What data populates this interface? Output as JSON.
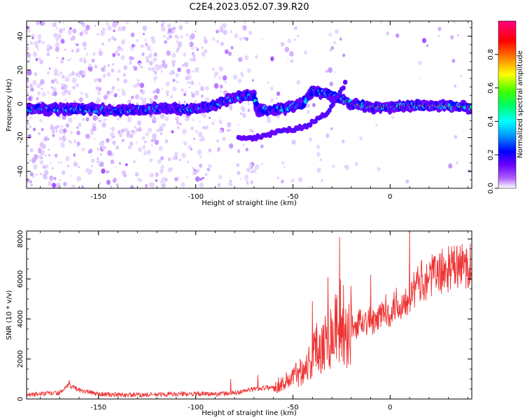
{
  "title": "C2E4.2023.052.07.39.R20",
  "chart_data": [
    {
      "type": "heatmap",
      "xlabel": "Height of straight line (km)",
      "ylabel": "Frequency (Hz)",
      "xlim": [
        -187,
        42
      ],
      "ylim": [
        -50,
        49
      ],
      "xticks": [
        -150,
        -100,
        -50,
        0
      ],
      "xtick_labels": [
        "-150",
        "-100",
        "-50",
        "0"
      ],
      "yticks": [
        -40,
        -20,
        0,
        20,
        40
      ],
      "ytick_labels": [
        "-40",
        "-20",
        "0",
        "20",
        "40"
      ],
      "grid": false,
      "ridge": [
        {
          "x": -185,
          "y": -3
        },
        {
          "x": -170,
          "y": -3
        },
        {
          "x": -160,
          "y": -3
        },
        {
          "x": -140,
          "y": -4
        },
        {
          "x": -120,
          "y": -3
        },
        {
          "x": -100,
          "y": -3
        },
        {
          "x": -90,
          "y": -1
        },
        {
          "x": -80,
          "y": 4
        },
        {
          "x": -70,
          "y": 5
        },
        {
          "x": -68,
          "y": -4
        },
        {
          "x": -55,
          "y": -3
        },
        {
          "x": -45,
          "y": 0
        },
        {
          "x": -40,
          "y": 8
        },
        {
          "x": -30,
          "y": 5
        },
        {
          "x": -25,
          "y": 3
        },
        {
          "x": -20,
          "y": 0
        },
        {
          "x": -10,
          "y": -2
        },
        {
          "x": 0,
          "y": -2
        },
        {
          "x": 10,
          "y": -1
        },
        {
          "x": 25,
          "y": -1
        },
        {
          "x": 40,
          "y": -2
        }
      ],
      "branch": [
        {
          "x": -78,
          "y": -20
        },
        {
          "x": -70,
          "y": -20
        },
        {
          "x": -55,
          "y": -16
        },
        {
          "x": -45,
          "y": -14
        },
        {
          "x": -38,
          "y": -10
        },
        {
          "x": -32,
          "y": -5
        },
        {
          "x": -27,
          "y": 5
        },
        {
          "x": -23,
          "y": 12
        }
      ],
      "colorbar": {
        "label": "Normalized spectral amplitude",
        "min": 0.0,
        "max": 1.0,
        "ticks": [
          0.0,
          0.2,
          0.4,
          0.6,
          0.8
        ],
        "tick_labels": [
          "0.0",
          "0.2",
          "0.4",
          "0.6",
          "0.8"
        ],
        "colors": [
          "#ffffff",
          "#b060ff",
          "#6a00ff",
          "#0000ff",
          "#00a0ff",
          "#00ffff",
          "#00ff60",
          "#40ff00",
          "#ffff00",
          "#ff8000",
          "#ff0000",
          "#ff0080"
        ]
      }
    },
    {
      "type": "line",
      "xlabel": "Height of straight line (km)",
      "ylabel": "SNR (10 * v/v)",
      "xlim": [
        -187,
        42
      ],
      "ylim": [
        0,
        8400
      ],
      "xticks": [
        -150,
        -100,
        -50,
        0
      ],
      "xtick_labels": [
        "-150",
        "-100",
        "-50",
        "0"
      ],
      "yticks": [
        0,
        2000,
        4000,
        6000,
        8000
      ],
      "ytick_labels": [
        "0",
        "2000",
        "4000",
        "6000",
        "8000"
      ],
      "grid": false,
      "series": [
        {
          "color": "#ee3333",
          "x": [
            -187,
            -180,
            -170,
            -165,
            -160,
            -150,
            -140,
            -130,
            -120,
            -110,
            -100,
            -90,
            -80,
            -75,
            -70,
            -65,
            -60,
            -55,
            -50,
            -45,
            -40,
            -38,
            -35,
            -32,
            -30,
            -28,
            -26,
            -25,
            -24,
            -22,
            -20,
            -18,
            -15,
            -12,
            -10,
            -8,
            -5,
            -3,
            0,
            3,
            5,
            8,
            10,
            12,
            15,
            18,
            20,
            25,
            30,
            35,
            40,
            42
          ],
          "y": [
            200,
            250,
            300,
            700,
            450,
            250,
            200,
            200,
            220,
            250,
            250,
            250,
            300,
            400,
            500,
            550,
            600,
            800,
            1100,
            1500,
            2000,
            2600,
            2800,
            3000,
            3300,
            3600,
            3900,
            4200,
            2500,
            3200,
            3800,
            3400,
            4100,
            3800,
            4000,
            3700,
            4200,
            4500,
            4300,
            4800,
            4600,
            5000,
            5200,
            5400,
            5800,
            6000,
            6100,
            6300,
            6500,
            6600,
            6700,
            6700
          ]
        }
      ],
      "spikes": [
        {
          "x": -165,
          "y": 950
        },
        {
          "x": -82,
          "y": 1000
        },
        {
          "x": -68,
          "y": 1200
        },
        {
          "x": -40,
          "y": 4900
        },
        {
          "x": -32,
          "y": 6100
        },
        {
          "x": -26,
          "y": 8100
        },
        {
          "x": -24,
          "y": 5700
        },
        {
          "x": -10,
          "y": 6200
        },
        {
          "x": 10,
          "y": 8400
        },
        {
          "x": 16,
          "y": 6900
        }
      ]
    }
  ]
}
